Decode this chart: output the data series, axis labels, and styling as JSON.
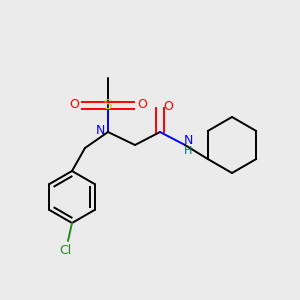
{
  "background_color": "#ebebeb",
  "colors": {
    "S": "#d4d400",
    "O": "#ff0000",
    "N": "#0000ff",
    "C": "#000000",
    "H": "#007070",
    "Cl": "#228b22",
    "bond": "#000000"
  },
  "figsize": [
    3.0,
    3.0
  ],
  "dpi": 100,
  "lw": 1.4,
  "fs": 9
}
